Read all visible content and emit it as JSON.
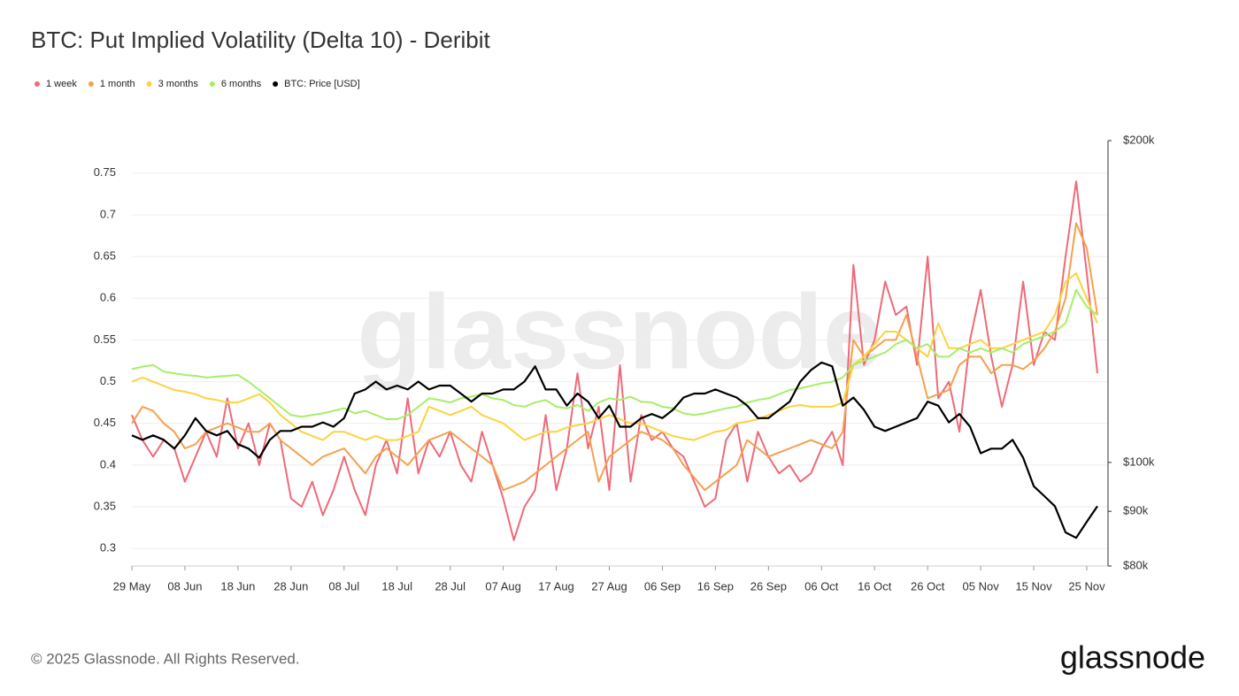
{
  "chart_data": {
    "type": "line",
    "title": "BTC: Put Implied Volatility (Delta 10) - Deribit",
    "watermark": "glassnode",
    "footer": "© 2025 Glassnode. All Rights Reserved.",
    "logo": "glassnode",
    "categories": [
      "29 May",
      null,
      null,
      null,
      null,
      "08 Jun",
      null,
      null,
      null,
      null,
      "18 Jun",
      null,
      null,
      null,
      null,
      "28 Jun",
      null,
      null,
      null,
      null,
      "08 Jul",
      null,
      null,
      null,
      null,
      "18 Jul",
      null,
      null,
      null,
      null,
      "28 Jul",
      null,
      null,
      null,
      null,
      "07 Aug",
      null,
      null,
      null,
      null,
      "17 Aug",
      null,
      null,
      null,
      null,
      "27 Aug",
      null,
      null,
      null,
      null,
      "06 Sep",
      null,
      null,
      null,
      null,
      "16 Sep",
      null,
      null,
      null,
      null,
      "26 Sep",
      null,
      null,
      null,
      null,
      "06 Oct",
      null,
      null,
      null,
      null,
      "16 Oct",
      null,
      null,
      null,
      null,
      "26 Oct",
      null,
      null,
      null,
      null,
      "05 Nov",
      null,
      null,
      null,
      null,
      "15 Nov",
      null,
      null,
      null,
      null,
      "25 Nov",
      null
    ],
    "ylim": [
      0.279,
      0.789
    ],
    "yticks": [
      0.3,
      0.35,
      0.4,
      0.45,
      0.5,
      0.55,
      0.6,
      0.65,
      0.7,
      0.75
    ],
    "y2lim": [
      80000,
      200000
    ],
    "y2scale": "log",
    "y2ticks": [
      {
        "value": 80000,
        "label": "$80k"
      },
      {
        "value": 90000,
        "label": "$90k"
      },
      {
        "value": 100000,
        "label": "$100k"
      },
      {
        "value": 200000,
        "label": "$200k"
      }
    ],
    "grid": true,
    "legend": "top-left",
    "series": [
      {
        "name": "1 week",
        "color": "#ee6a78",
        "values": [
          0.46,
          0.43,
          0.41,
          0.43,
          0.42,
          0.38,
          0.41,
          0.44,
          0.41,
          0.48,
          0.42,
          0.45,
          0.4,
          0.45,
          0.43,
          0.36,
          0.35,
          0.38,
          0.34,
          0.37,
          0.41,
          0.37,
          0.34,
          0.4,
          0.43,
          0.39,
          0.48,
          0.39,
          0.43,
          0.41,
          0.44,
          0.4,
          0.38,
          0.44,
          0.4,
          0.36,
          0.31,
          0.35,
          0.37,
          0.46,
          0.37,
          0.42,
          0.51,
          0.42,
          0.47,
          0.37,
          0.52,
          0.38,
          0.46,
          0.43,
          0.44,
          0.42,
          0.41,
          0.38,
          0.35,
          0.36,
          0.43,
          0.45,
          0.38,
          0.44,
          0.41,
          0.39,
          0.4,
          0.38,
          0.39,
          0.42,
          0.44,
          0.4,
          0.64,
          0.52,
          0.55,
          0.62,
          0.58,
          0.59,
          0.52,
          0.65,
          0.48,
          0.5,
          0.44,
          0.55,
          0.61,
          0.53,
          0.47,
          0.52,
          0.62,
          0.52,
          0.56,
          0.55,
          0.65,
          0.74,
          0.63,
          0.51
        ]
      },
      {
        "name": "1 month",
        "color": "#f5a04e",
        "values": [
          0.45,
          0.47,
          0.465,
          0.45,
          0.44,
          0.42,
          0.425,
          0.44,
          0.445,
          0.45,
          0.445,
          0.44,
          0.44,
          0.45,
          0.43,
          0.42,
          0.41,
          0.4,
          0.41,
          0.415,
          0.42,
          0.405,
          0.39,
          0.41,
          0.42,
          0.41,
          0.4,
          0.415,
          0.43,
          0.435,
          0.44,
          0.43,
          0.42,
          0.41,
          0.4,
          0.37,
          0.375,
          0.38,
          0.39,
          0.4,
          0.41,
          0.42,
          0.43,
          0.44,
          0.38,
          0.41,
          0.42,
          0.43,
          0.44,
          0.435,
          0.43,
          0.42,
          0.4,
          0.385,
          0.37,
          0.38,
          0.39,
          0.4,
          0.43,
          0.42,
          0.41,
          0.415,
          0.42,
          0.425,
          0.43,
          0.425,
          0.42,
          0.44,
          0.55,
          0.53,
          0.54,
          0.55,
          0.55,
          0.58,
          0.53,
          0.48,
          0.485,
          0.49,
          0.52,
          0.53,
          0.53,
          0.51,
          0.52,
          0.52,
          0.515,
          0.525,
          0.54,
          0.56,
          0.6,
          0.69,
          0.66,
          0.58
        ]
      },
      {
        "name": "3 months",
        "color": "#fbd33f",
        "values": [
          0.5,
          0.505,
          0.5,
          0.495,
          0.49,
          0.488,
          0.485,
          0.48,
          0.478,
          0.475,
          0.475,
          0.48,
          0.485,
          0.475,
          0.46,
          0.45,
          0.44,
          0.435,
          0.43,
          0.44,
          0.44,
          0.435,
          0.43,
          0.435,
          0.43,
          0.43,
          0.435,
          0.44,
          0.47,
          0.465,
          0.46,
          0.465,
          0.47,
          0.46,
          0.455,
          0.45,
          0.44,
          0.43,
          0.435,
          0.44,
          0.44,
          0.445,
          0.448,
          0.45,
          0.455,
          0.46,
          0.455,
          0.45,
          0.45,
          0.445,
          0.44,
          0.435,
          0.432,
          0.43,
          0.435,
          0.44,
          0.442,
          0.45,
          0.452,
          0.455,
          0.46,
          0.465,
          0.47,
          0.472,
          0.47,
          0.47,
          0.47,
          0.475,
          0.52,
          0.53,
          0.545,
          0.56,
          0.56,
          0.55,
          0.54,
          0.53,
          0.57,
          0.54,
          0.54,
          0.545,
          0.55,
          0.54,
          0.54,
          0.545,
          0.55,
          0.555,
          0.56,
          0.58,
          0.62,
          0.63,
          0.6,
          0.57
        ]
      },
      {
        "name": "6 months",
        "color": "#a6ee6a",
        "values": [
          0.515,
          0.518,
          0.52,
          0.512,
          0.51,
          0.508,
          0.507,
          0.505,
          0.506,
          0.507,
          0.508,
          0.5,
          0.49,
          0.48,
          0.47,
          0.46,
          0.458,
          0.46,
          0.462,
          0.465,
          0.468,
          0.462,
          0.465,
          0.46,
          0.455,
          0.455,
          0.46,
          0.47,
          0.48,
          0.478,
          0.475,
          0.48,
          0.482,
          0.485,
          0.48,
          0.478,
          0.472,
          0.47,
          0.475,
          0.478,
          0.47,
          0.468,
          0.472,
          0.465,
          0.475,
          0.48,
          0.478,
          0.482,
          0.476,
          0.475,
          0.47,
          0.468,
          0.462,
          0.46,
          0.462,
          0.465,
          0.468,
          0.47,
          0.475,
          0.478,
          0.48,
          0.485,
          0.49,
          0.492,
          0.495,
          0.498,
          0.5,
          0.505,
          0.52,
          0.525,
          0.53,
          0.535,
          0.545,
          0.55,
          0.54,
          0.545,
          0.53,
          0.53,
          0.54,
          0.535,
          0.54,
          0.535,
          0.54,
          0.535,
          0.545,
          0.55,
          0.555,
          0.56,
          0.57,
          0.61,
          0.59,
          0.58
        ]
      },
      {
        "name": "BTC: Price [USD]",
        "color": "#000000",
        "axis": "y2",
        "values": [
          106000,
          105000,
          106000,
          105000,
          103000,
          106000,
          110000,
          107000,
          106000,
          107000,
          104000,
          103000,
          101000,
          105000,
          107000,
          107000,
          108000,
          108000,
          109000,
          108000,
          110000,
          116000,
          117000,
          119000,
          117000,
          118000,
          117000,
          119000,
          117000,
          118000,
          118000,
          116000,
          114000,
          116000,
          116000,
          117000,
          117000,
          119000,
          123000,
          117000,
          117000,
          113000,
          116000,
          114000,
          110000,
          113000,
          108000,
          108000,
          110000,
          111000,
          110000,
          112000,
          115000,
          116000,
          116000,
          117000,
          116000,
          115000,
          113000,
          110000,
          110000,
          112000,
          114000,
          119000,
          122000,
          124000,
          123000,
          113000,
          115000,
          112000,
          108000,
          107000,
          108000,
          109000,
          110000,
          114000,
          113000,
          109000,
          111000,
          108000,
          102000,
          103000,
          103000,
          105000,
          101000,
          95000,
          93000,
          91000,
          86000,
          85000,
          88000,
          91000
        ]
      }
    ]
  }
}
